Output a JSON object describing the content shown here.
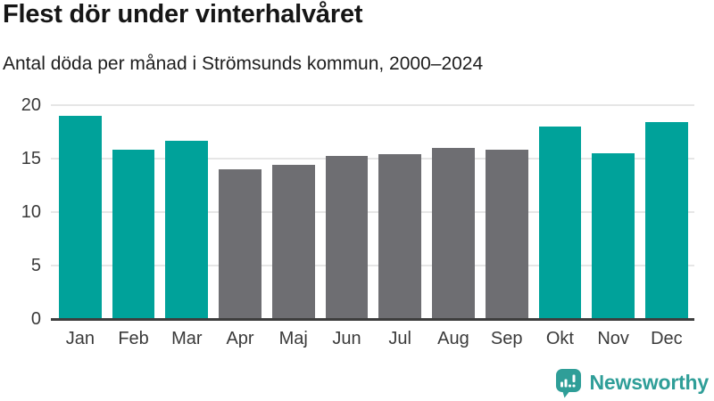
{
  "header": {
    "title": "Flest dör under vinterhalvåret",
    "subtitle": "Antal döda per månad i Strömsunds kommun, 2000–2024"
  },
  "chart_data": {
    "type": "bar",
    "title": "Flest dör under vinterhalvåret",
    "subtitle": "Antal döda per månad i Strömsunds kommun, 2000–2024",
    "categories": [
      "Jan",
      "Feb",
      "Mar",
      "Apr",
      "Maj",
      "Jun",
      "Jul",
      "Aug",
      "Sep",
      "Okt",
      "Nov",
      "Dec"
    ],
    "values": [
      19.0,
      15.8,
      16.6,
      14.0,
      14.4,
      15.2,
      15.4,
      16.0,
      15.8,
      18.0,
      15.5,
      18.4
    ],
    "colors": [
      "#00a29a",
      "#00a29a",
      "#00a29a",
      "#6e6e72",
      "#6e6e72",
      "#6e6e72",
      "#6e6e72",
      "#6e6e72",
      "#6e6e72",
      "#00a29a",
      "#00a29a",
      "#00a29a"
    ],
    "highlight_color": "#00a29a",
    "base_color": "#6e6e72",
    "xlabel": "",
    "ylabel": "",
    "ylim": [
      0,
      20
    ],
    "yticks": [
      0,
      5,
      10,
      15,
      20
    ],
    "grid": true,
    "legend": "none"
  },
  "footer": {
    "brand": "Newsworthy",
    "brand_color": "#2f9e98",
    "logo_icon": "speech-bubble-bar-chart-icon"
  }
}
